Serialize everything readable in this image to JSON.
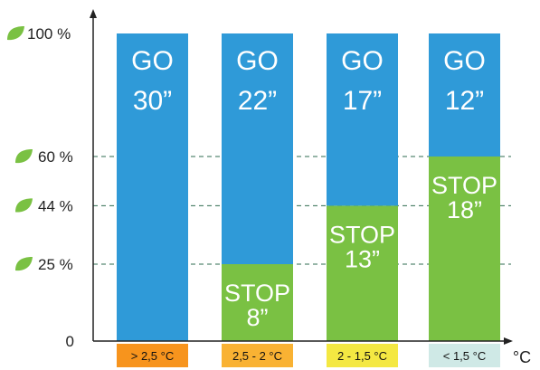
{
  "chart_data": {
    "type": "bar",
    "stacked": true,
    "categories": [
      "> 2,5 °C",
      "2,5 - 2 °C",
      "2 - 1,5 °C",
      "< 1,5 °C"
    ],
    "category_colors": [
      "#f7941d",
      "#f9b233",
      "#f4e842",
      "#cfe9e6"
    ],
    "series": [
      {
        "name": "STOP",
        "values": [
          0,
          25,
          44,
          60
        ],
        "labels": [
          "",
          "STOP\n8”",
          "STOP\n13”",
          "STOP\n18”"
        ],
        "color": "#7ac143"
      },
      {
        "name": "GO",
        "values": [
          100,
          75,
          56,
          40
        ],
        "labels": [
          "GO\n30”",
          "GO\n22”",
          "GO\n17”",
          "GO\n12”"
        ],
        "color": "#2f9ad8"
      }
    ],
    "y_ticks": [
      {
        "value": 0,
        "label": "0",
        "leaf": false
      },
      {
        "value": 25,
        "label": "25 %",
        "leaf": true
      },
      {
        "value": 44,
        "label": "44 %",
        "leaf": true
      },
      {
        "value": 60,
        "label": "60 %",
        "leaf": true
      },
      {
        "value": 100,
        "label": "100 %",
        "leaf": true
      }
    ],
    "reference_lines": [
      25,
      44,
      60
    ],
    "x_unit": "°C",
    "ylim": [
      0,
      100
    ],
    "grid": false,
    "title": "",
    "xlabel": "",
    "ylabel": ""
  },
  "colors": {
    "axis": "#222222",
    "dash": "#2e6b4f",
    "leaf": "#7ac143"
  }
}
